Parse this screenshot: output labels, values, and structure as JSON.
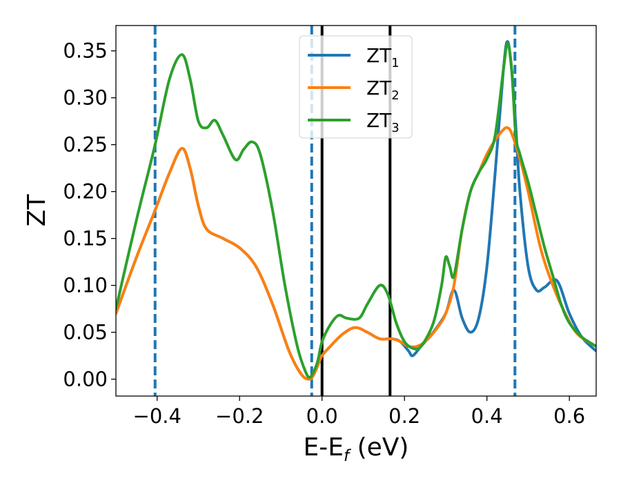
{
  "chart_data": {
    "type": "line",
    "xlabel": {
      "main": "E-E",
      "sub": "f",
      "unit": " (eV)"
    },
    "ylabel": "ZT",
    "xlim": [
      -0.5,
      0.665
    ],
    "ylim": [
      -0.018,
      0.377
    ],
    "xticks": [
      -0.4,
      -0.2,
      0.0,
      0.2,
      0.4,
      0.6
    ],
    "xtick_labels": [
      "−0.4",
      "−0.2",
      "0.0",
      "0.2",
      "0.4",
      "0.6"
    ],
    "yticks": [
      0.0,
      0.05,
      0.1,
      0.15,
      0.2,
      0.25,
      0.3,
      0.35
    ],
    "ytick_labels": [
      "0.00",
      "0.05",
      "0.10",
      "0.15",
      "0.20",
      "0.25",
      "0.30",
      "0.35"
    ],
    "grid": false,
    "legend_position": "top-center",
    "vlines": [
      {
        "x": -0.405,
        "style": "dashed",
        "color": "#1f77b4"
      },
      {
        "x": -0.025,
        "style": "dashed",
        "color": "#1f77b4"
      },
      {
        "x": 0.468,
        "style": "dashed",
        "color": "#1f77b4"
      },
      {
        "x": 0.0,
        "style": "solid",
        "color": "#000000"
      },
      {
        "x": 0.165,
        "style": "solid",
        "color": "#000000"
      }
    ],
    "series": [
      {
        "name": "ZT",
        "sub": "1",
        "color": "#1f77b4",
        "x": [
          -0.5,
          -0.45,
          -0.405,
          -0.37,
          -0.34,
          -0.32,
          -0.3,
          -0.28,
          -0.24,
          -0.2,
          -0.16,
          -0.12,
          -0.08,
          -0.05,
          -0.03,
          -0.02,
          -0.01,
          0.0,
          0.02,
          0.05,
          0.08,
          0.11,
          0.14,
          0.17,
          0.19,
          0.21,
          0.22,
          0.24,
          0.27,
          0.3,
          0.32,
          0.34,
          0.36,
          0.38,
          0.4,
          0.42,
          0.44,
          0.45,
          0.46,
          0.47,
          0.48,
          0.5,
          0.52,
          0.54,
          0.57,
          0.6,
          0.63,
          0.665
        ],
        "y": [
          0.07,
          0.13,
          0.18,
          0.22,
          0.246,
          0.225,
          0.185,
          0.16,
          0.15,
          0.14,
          0.12,
          0.08,
          0.03,
          0.005,
          0.0,
          0.005,
          0.015,
          0.025,
          0.035,
          0.048,
          0.055,
          0.05,
          0.043,
          0.043,
          0.04,
          0.03,
          0.025,
          0.035,
          0.05,
          0.07,
          0.095,
          0.065,
          0.05,
          0.065,
          0.12,
          0.22,
          0.33,
          0.36,
          0.33,
          0.27,
          0.2,
          0.12,
          0.095,
          0.098,
          0.105,
          0.07,
          0.045,
          0.03
        ]
      },
      {
        "name": "ZT",
        "sub": "2",
        "color": "#ff7f0e",
        "x": [
          -0.5,
          -0.45,
          -0.405,
          -0.37,
          -0.34,
          -0.32,
          -0.3,
          -0.28,
          -0.24,
          -0.2,
          -0.16,
          -0.12,
          -0.08,
          -0.05,
          -0.03,
          -0.02,
          -0.01,
          0.0,
          0.02,
          0.05,
          0.08,
          0.11,
          0.14,
          0.17,
          0.19,
          0.21,
          0.23,
          0.25,
          0.28,
          0.3,
          0.32,
          0.34,
          0.36,
          0.38,
          0.4,
          0.42,
          0.44,
          0.45,
          0.46,
          0.48,
          0.5,
          0.53,
          0.56,
          0.59,
          0.62,
          0.665
        ],
        "y": [
          0.07,
          0.13,
          0.18,
          0.22,
          0.246,
          0.225,
          0.185,
          0.16,
          0.15,
          0.14,
          0.12,
          0.08,
          0.03,
          0.005,
          0.0,
          0.005,
          0.015,
          0.025,
          0.035,
          0.048,
          0.055,
          0.05,
          0.043,
          0.043,
          0.04,
          0.035,
          0.035,
          0.04,
          0.055,
          0.07,
          0.1,
          0.16,
          0.2,
          0.22,
          0.24,
          0.255,
          0.266,
          0.268,
          0.262,
          0.235,
          0.2,
          0.14,
          0.1,
          0.07,
          0.048,
          0.035
        ]
      },
      {
        "name": "ZT",
        "sub": "3",
        "color": "#2ca02c",
        "x": [
          -0.5,
          -0.45,
          -0.405,
          -0.37,
          -0.34,
          -0.32,
          -0.3,
          -0.28,
          -0.26,
          -0.24,
          -0.21,
          -0.19,
          -0.17,
          -0.15,
          -0.12,
          -0.09,
          -0.06,
          -0.04,
          -0.03,
          -0.02,
          -0.01,
          0.0,
          0.02,
          0.04,
          0.06,
          0.09,
          0.11,
          0.14,
          0.16,
          0.18,
          0.2,
          0.22,
          0.24,
          0.27,
          0.29,
          0.3,
          0.31,
          0.32,
          0.34,
          0.36,
          0.38,
          0.4,
          0.42,
          0.44,
          0.45,
          0.46,
          0.47,
          0.48,
          0.5,
          0.52,
          0.54,
          0.56,
          0.58,
          0.6,
          0.63,
          0.665
        ],
        "y": [
          0.075,
          0.17,
          0.25,
          0.32,
          0.346,
          0.32,
          0.275,
          0.268,
          0.276,
          0.26,
          0.234,
          0.245,
          0.253,
          0.24,
          0.18,
          0.1,
          0.035,
          0.008,
          0.002,
          0.008,
          0.02,
          0.04,
          0.058,
          0.068,
          0.065,
          0.065,
          0.08,
          0.1,
          0.09,
          0.06,
          0.04,
          0.033,
          0.035,
          0.06,
          0.1,
          0.13,
          0.12,
          0.11,
          0.16,
          0.2,
          0.22,
          0.235,
          0.26,
          0.33,
          0.358,
          0.33,
          0.26,
          0.24,
          0.21,
          0.175,
          0.14,
          0.11,
          0.08,
          0.06,
          0.045,
          0.035
        ]
      }
    ]
  }
}
